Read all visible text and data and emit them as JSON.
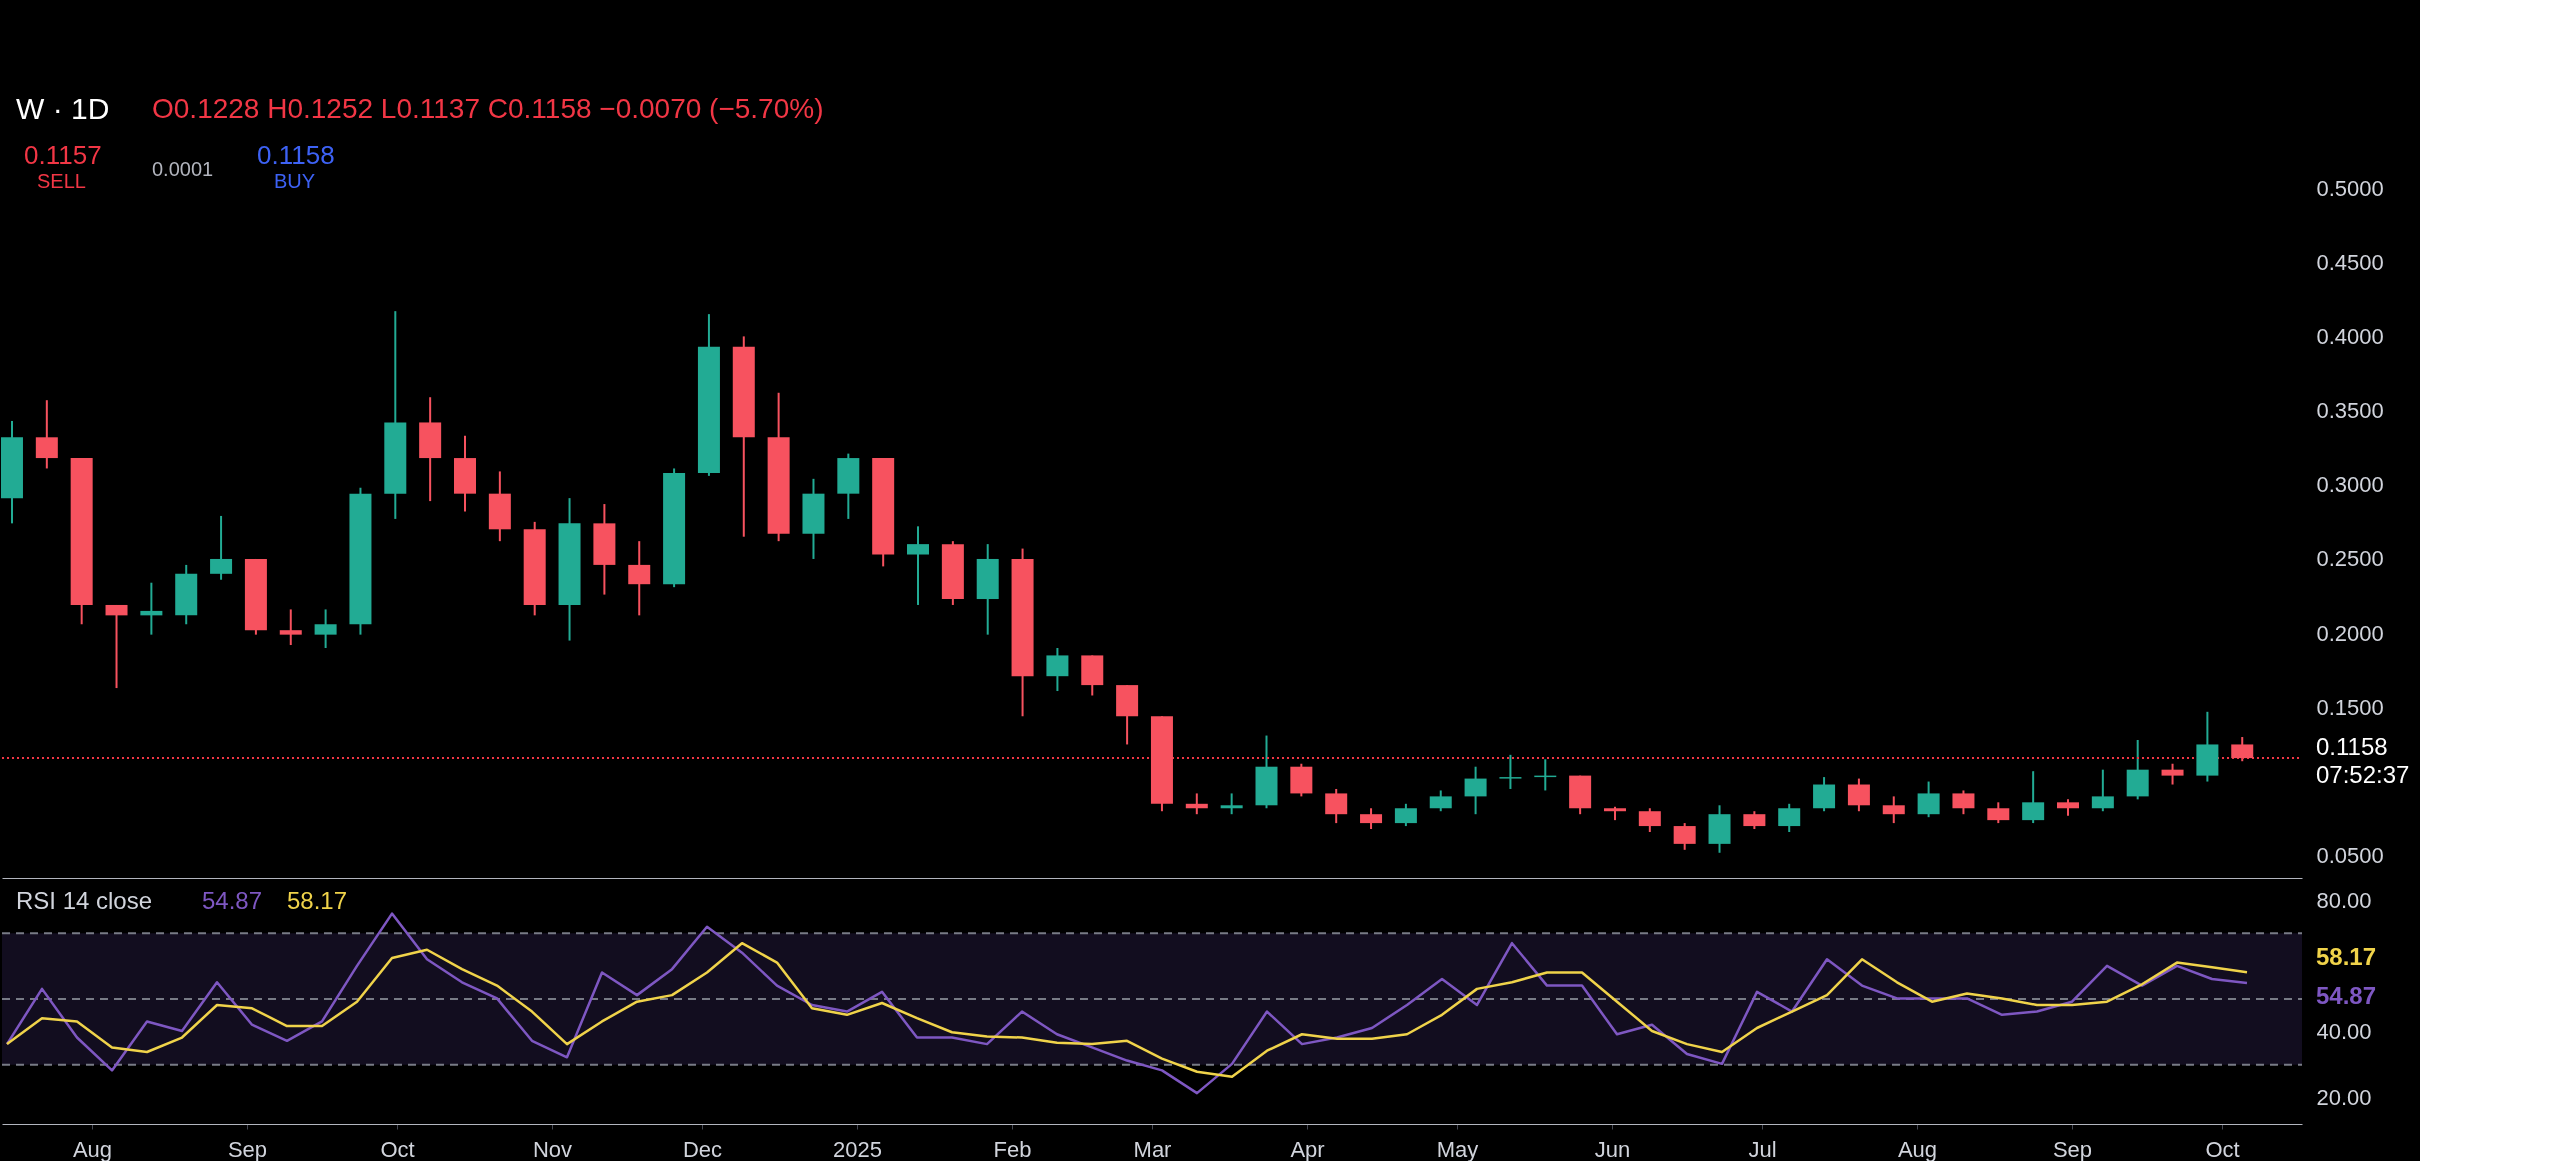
{
  "chart_data": [
    {
      "type": "candlestick",
      "title": "W · 1D",
      "subtitle": "O0.1228 H0.1252 L0.1137 C0.1158 −0.0070 (−5.70%)",
      "x": [
        "2024-07-15",
        "2024-07-22",
        "2024-07-29",
        "2024-08-05",
        "2024-08-12",
        "2024-08-19",
        "2024-08-26",
        "2024-09-02",
        "2024-09-09",
        "2024-09-16",
        "2024-09-23",
        "2024-09-30",
        "2024-10-07",
        "2024-10-14",
        "2024-10-21",
        "2024-10-28",
        "2024-11-04",
        "2024-11-11",
        "2024-11-18",
        "2024-11-25",
        "2024-12-02",
        "2024-12-09",
        "2024-12-16",
        "2024-12-23",
        "2024-12-30",
        "2025-01-06",
        "2025-01-13",
        "2025-01-20",
        "2025-01-27",
        "2025-02-03",
        "2025-02-10",
        "2025-02-17",
        "2025-02-24",
        "2025-03-03",
        "2025-03-10",
        "2025-03-17",
        "2025-03-24",
        "2025-03-31",
        "2025-04-07",
        "2025-04-14",
        "2025-04-21",
        "2025-04-28",
        "2025-05-05",
        "2025-05-12",
        "2025-05-19",
        "2025-05-26",
        "2025-06-02",
        "2025-06-09",
        "2025-06-16",
        "2025-06-23",
        "2025-06-30",
        "2025-07-07",
        "2025-07-14",
        "2025-07-21",
        "2025-07-28",
        "2025-08-04",
        "2025-08-11",
        "2025-08-18",
        "2025-08-25",
        "2025-09-01",
        "2025-09-08",
        "2025-09-15",
        "2025-09-22",
        "2025-09-29",
        "2025-10-06"
      ],
      "ohlc": [
        [
          0.291,
          0.343,
          0.274,
          0.332
        ],
        [
          0.332,
          0.357,
          0.311,
          0.318
        ],
        [
          0.318,
          0.318,
          0.206,
          0.219
        ],
        [
          0.219,
          0.219,
          0.163,
          0.212
        ],
        [
          0.212,
          0.234,
          0.199,
          0.215
        ],
        [
          0.212,
          0.246,
          0.206,
          0.24
        ],
        [
          0.24,
          0.279,
          0.236,
          0.25
        ],
        [
          0.25,
          0.25,
          0.199,
          0.202
        ],
        [
          0.202,
          0.216,
          0.192,
          0.199
        ],
        [
          0.199,
          0.216,
          0.19,
          0.206
        ],
        [
          0.206,
          0.298,
          0.199,
          0.294
        ],
        [
          0.294,
          0.417,
          0.277,
          0.342
        ],
        [
          0.342,
          0.359,
          0.289,
          0.318
        ],
        [
          0.318,
          0.333,
          0.282,
          0.294
        ],
        [
          0.294,
          0.309,
          0.262,
          0.27
        ],
        [
          0.27,
          0.275,
          0.212,
          0.219
        ],
        [
          0.219,
          0.291,
          0.195,
          0.274
        ],
        [
          0.274,
          0.287,
          0.226,
          0.246
        ],
        [
          0.246,
          0.262,
          0.212,
          0.233
        ],
        [
          0.233,
          0.311,
          0.231,
          0.308
        ],
        [
          0.308,
          0.415,
          0.306,
          0.393
        ],
        [
          0.393,
          0.4,
          0.265,
          0.332
        ],
        [
          0.332,
          0.362,
          0.262,
          0.267
        ],
        [
          0.267,
          0.304,
          0.25,
          0.294
        ],
        [
          0.294,
          0.321,
          0.277,
          0.318
        ],
        [
          0.318,
          0.318,
          0.245,
          0.253
        ],
        [
          0.253,
          0.272,
          0.219,
          0.26
        ],
        [
          0.26,
          0.262,
          0.219,
          0.223
        ],
        [
          0.223,
          0.26,
          0.199,
          0.25
        ],
        [
          0.25,
          0.257,
          0.144,
          0.171
        ],
        [
          0.171,
          0.19,
          0.161,
          0.185
        ],
        [
          0.185,
          0.185,
          0.158,
          0.165
        ],
        [
          0.165,
          0.165,
          0.125,
          0.144
        ],
        [
          0.144,
          0.144,
          0.08,
          0.085
        ],
        [
          0.085,
          0.092,
          0.078,
          0.082
        ],
        [
          0.082,
          0.092,
          0.078,
          0.084
        ],
        [
          0.084,
          0.131,
          0.082,
          0.11
        ],
        [
          0.11,
          0.112,
          0.09,
          0.092
        ],
        [
          0.092,
          0.095,
          0.072,
          0.078
        ],
        [
          0.078,
          0.082,
          0.068,
          0.072
        ],
        [
          0.072,
          0.085,
          0.07,
          0.082
        ],
        [
          0.082,
          0.094,
          0.08,
          0.09
        ],
        [
          0.09,
          0.11,
          0.078,
          0.102
        ],
        [
          0.102,
          0.118,
          0.095,
          0.103
        ],
        [
          0.103,
          0.115,
          0.094,
          0.104
        ],
        [
          0.104,
          0.104,
          0.078,
          0.082
        ],
        [
          0.082,
          0.083,
          0.074,
          0.08
        ],
        [
          0.08,
          0.082,
          0.066,
          0.07
        ],
        [
          0.07,
          0.072,
          0.054,
          0.058
        ],
        [
          0.058,
          0.084,
          0.052,
          0.078
        ],
        [
          0.078,
          0.08,
          0.068,
          0.07
        ],
        [
          0.07,
          0.085,
          0.066,
          0.082
        ],
        [
          0.082,
          0.103,
          0.08,
          0.098
        ],
        [
          0.098,
          0.102,
          0.08,
          0.084
        ],
        [
          0.084,
          0.09,
          0.072,
          0.078
        ],
        [
          0.078,
          0.1,
          0.076,
          0.092
        ],
        [
          0.092,
          0.094,
          0.078,
          0.082
        ],
        [
          0.082,
          0.086,
          0.072,
          0.074
        ],
        [
          0.074,
          0.107,
          0.072,
          0.086
        ],
        [
          0.086,
          0.088,
          0.077,
          0.082
        ],
        [
          0.082,
          0.108,
          0.08,
          0.09
        ],
        [
          0.09,
          0.128,
          0.088,
          0.108
        ],
        [
          0.108,
          0.112,
          0.098,
          0.104
        ],
        [
          0.104,
          0.147,
          0.1,
          0.125
        ],
        [
          0.125,
          0.13,
          0.1137,
          0.1158
        ]
      ],
      "colors": [
        "#22ab94",
        "#f7525f",
        "#f7525f",
        "#f7525f",
        "#22ab94",
        "#22ab94",
        "#22ab94",
        "#f7525f",
        "#f7525f",
        "#22ab94",
        "#22ab94",
        "#22ab94",
        "#f7525f",
        "#f7525f",
        "#f7525f",
        "#f7525f",
        "#22ab94",
        "#f7525f",
        "#f7525f",
        "#22ab94",
        "#22ab94",
        "#f7525f",
        "#f7525f",
        "#22ab94",
        "#22ab94",
        "#f7525f",
        "#22ab94",
        "#f7525f",
        "#22ab94",
        "#f7525f",
        "#22ab94",
        "#f7525f",
        "#f7525f",
        "#f7525f",
        "#f7525f",
        "#22ab94",
        "#22ab94",
        "#f7525f",
        "#f7525f",
        "#f7525f",
        "#22ab94",
        "#22ab94",
        "#22ab94",
        "#22ab94",
        "#22ab94",
        "#f7525f",
        "#f7525f",
        "#f7525f",
        "#f7525f",
        "#22ab94",
        "#f7525f",
        "#22ab94",
        "#22ab94",
        "#f7525f",
        "#f7525f",
        "#22ab94",
        "#f7525f",
        "#f7525f",
        "#22ab94",
        "#f7525f",
        "#22ab94",
        "#22ab94",
        "#f7525f",
        "#22ab94",
        "#f7525f"
      ],
      "xlim": [
        "2024-07-14",
        "2025-10-17"
      ],
      "ylim": [
        0.035,
        0.5
      ],
      "yticks": [
        {
          "value": 0.05,
          "label": "0.0500"
        },
        {
          "value": 0.15,
          "label": "0.1500"
        },
        {
          "value": 0.2,
          "label": "0.2000"
        },
        {
          "value": 0.25,
          "label": "0.2500"
        },
        {
          "value": 0.3,
          "label": "0.3000"
        },
        {
          "value": 0.35,
          "label": "0.3500"
        },
        {
          "value": 0.4,
          "label": "0.4000"
        },
        {
          "value": 0.45,
          "label": "0.4500"
        },
        {
          "value": 0.5,
          "label": "0.5000"
        }
      ],
      "tick_labels": "y",
      "ref_lines": [
        {
          "axis": "y",
          "value": 0.1158,
          "label": "0.1158",
          "color": "#f23645",
          "line_style": "dotted"
        }
      ],
      "annotations": [
        "0.1157",
        "SELL",
        "0.0001",
        "0.1158",
        "BUY",
        "07:52:37"
      ]
    },
    {
      "type": "line",
      "title": "RSI 14 close",
      "x": [
        "2024-07-15",
        "2024-07-22",
        "2024-07-29",
        "2024-08-05",
        "2024-08-12",
        "2024-08-19",
        "2024-08-26",
        "2024-09-02",
        "2024-09-09",
        "2024-09-16",
        "2024-09-23",
        "2024-09-30",
        "2024-10-07",
        "2024-10-14",
        "2024-10-21",
        "2024-10-28",
        "2024-11-04",
        "2024-11-11",
        "2024-11-18",
        "2024-11-25",
        "2024-12-02",
        "2024-12-09",
        "2024-12-16",
        "2024-12-23",
        "2024-12-30",
        "2025-01-06",
        "2025-01-13",
        "2025-01-20",
        "2025-01-27",
        "2025-02-03",
        "2025-02-10",
        "2025-02-17",
        "2025-02-24",
        "2025-03-03",
        "2025-03-10",
        "2025-03-17",
        "2025-03-24",
        "2025-03-31",
        "2025-04-07",
        "2025-04-14",
        "2025-04-21",
        "2025-04-28",
        "2025-05-05",
        "2025-05-12",
        "2025-05-19",
        "2025-05-26",
        "2025-06-02",
        "2025-06-09",
        "2025-06-16",
        "2025-06-23",
        "2025-06-30",
        "2025-07-07",
        "2025-07-14",
        "2025-07-21",
        "2025-07-28",
        "2025-08-04",
        "2025-08-11",
        "2025-08-18",
        "2025-08-25",
        "2025-09-01",
        "2025-09-08",
        "2025-09-15",
        "2025-09-22",
        "2025-09-29",
        "2025-10-06"
      ],
      "series": [
        {
          "color": "#7e57c2",
          "values": [
            36.3,
            53.1,
            38.3,
            28.3,
            43.2,
            40.3,
            55.1,
            42.2,
            37.3,
            43.2,
            60.1,
            76.0,
            62.1,
            55.1,
            50.2,
            37.3,
            32.3,
            58.1,
            51.2,
            59.1,
            72.0,
            64.1,
            54.1,
            48.2,
            46.2,
            52.2,
            38.3,
            38.3,
            36.3,
            46.2,
            39.3,
            35.3,
            31.3,
            28.3,
            21.4,
            30.3,
            46.2,
            36.3,
            38.3,
            41.2,
            48.2,
            56.1,
            48.2,
            67.0,
            54.1,
            54.1,
            39.3,
            42.2,
            33.3,
            30.3,
            52.2,
            46.2,
            62.1,
            54.1,
            50.2,
            50.2,
            50.2,
            45.2,
            46.2,
            49.2,
            60.1,
            54.1,
            60.1,
            56.1,
            54.87
          ]
        },
        {
          "color": "#f0d34a",
          "values": [
            36.3,
            44.2,
            43.2,
            35.3,
            33.9,
            38.3,
            48.2,
            47.2,
            41.8,
            41.8,
            49.2,
            62.5,
            65.0,
            59.1,
            54.1,
            46.2,
            36.3,
            43.2,
            49.2,
            51.2,
            58.1,
            67.0,
            61.1,
            47.2,
            45.2,
            48.8,
            44.2,
            39.9,
            38.6,
            38.3,
            36.7,
            36.3,
            37.3,
            31.9,
            27.9,
            26.4,
            34.3,
            39.3,
            37.9,
            37.9,
            39.3,
            45.2,
            53.1,
            55.1,
            58.1,
            58.1,
            49.2,
            40.3,
            36.3,
            33.9,
            41.2,
            46.2,
            51.2,
            62.1,
            55.1,
            49.2,
            51.7,
            50.2,
            48.2,
            48.2,
            49.2,
            54.5,
            61.1,
            59.7,
            58.17
          ]
        }
      ],
      "xlim": [
        "2024-07-14",
        "2025-10-17"
      ],
      "xticks": [
        {
          "value": "2024-08-01",
          "label": "Aug"
        },
        {
          "value": "2024-09-01",
          "label": "Sep"
        },
        {
          "value": "2024-10-01",
          "label": "Oct"
        },
        {
          "value": "2024-11-01",
          "label": "Nov"
        },
        {
          "value": "2024-12-01",
          "label": "Dec"
        },
        {
          "value": "2025-01-01",
          "label": "2025"
        },
        {
          "value": "2025-02-01",
          "label": "Feb"
        },
        {
          "value": "2025-03-01",
          "label": "Mar"
        },
        {
          "value": "2025-04-01",
          "label": "Apr"
        },
        {
          "value": "2025-05-01",
          "label": "May"
        },
        {
          "value": "2025-06-01",
          "label": "Jun"
        },
        {
          "value": "2025-07-01",
          "label": "Jul"
        },
        {
          "value": "2025-08-01",
          "label": "Aug"
        },
        {
          "value": "2025-09-01",
          "label": "Sep"
        },
        {
          "value": "2025-10-01",
          "label": "Oct"
        }
      ],
      "ylim": [
        12,
        85
      ],
      "yticks": [
        {
          "value": 20,
          "label": "20.00"
        },
        {
          "value": 40,
          "label": "40.00"
        },
        {
          "value": 80,
          "label": "80.00"
        }
      ],
      "ref_lines": [
        {
          "axis": "y",
          "value": 70,
          "color": "#787b86",
          "line_style": "dashed"
        },
        {
          "axis": "y",
          "value": 50,
          "color": "#787b86",
          "line_style": "dashed"
        },
        {
          "axis": "y",
          "value": 30,
          "color": "#787b86",
          "line_style": "dashed"
        }
      ],
      "bands": [
        {
          "axis": "y",
          "from": 30,
          "to": 70,
          "color": "#120d1f"
        }
      ],
      "annotations": [
        "54.87",
        "58.17"
      ]
    }
  ]
}
